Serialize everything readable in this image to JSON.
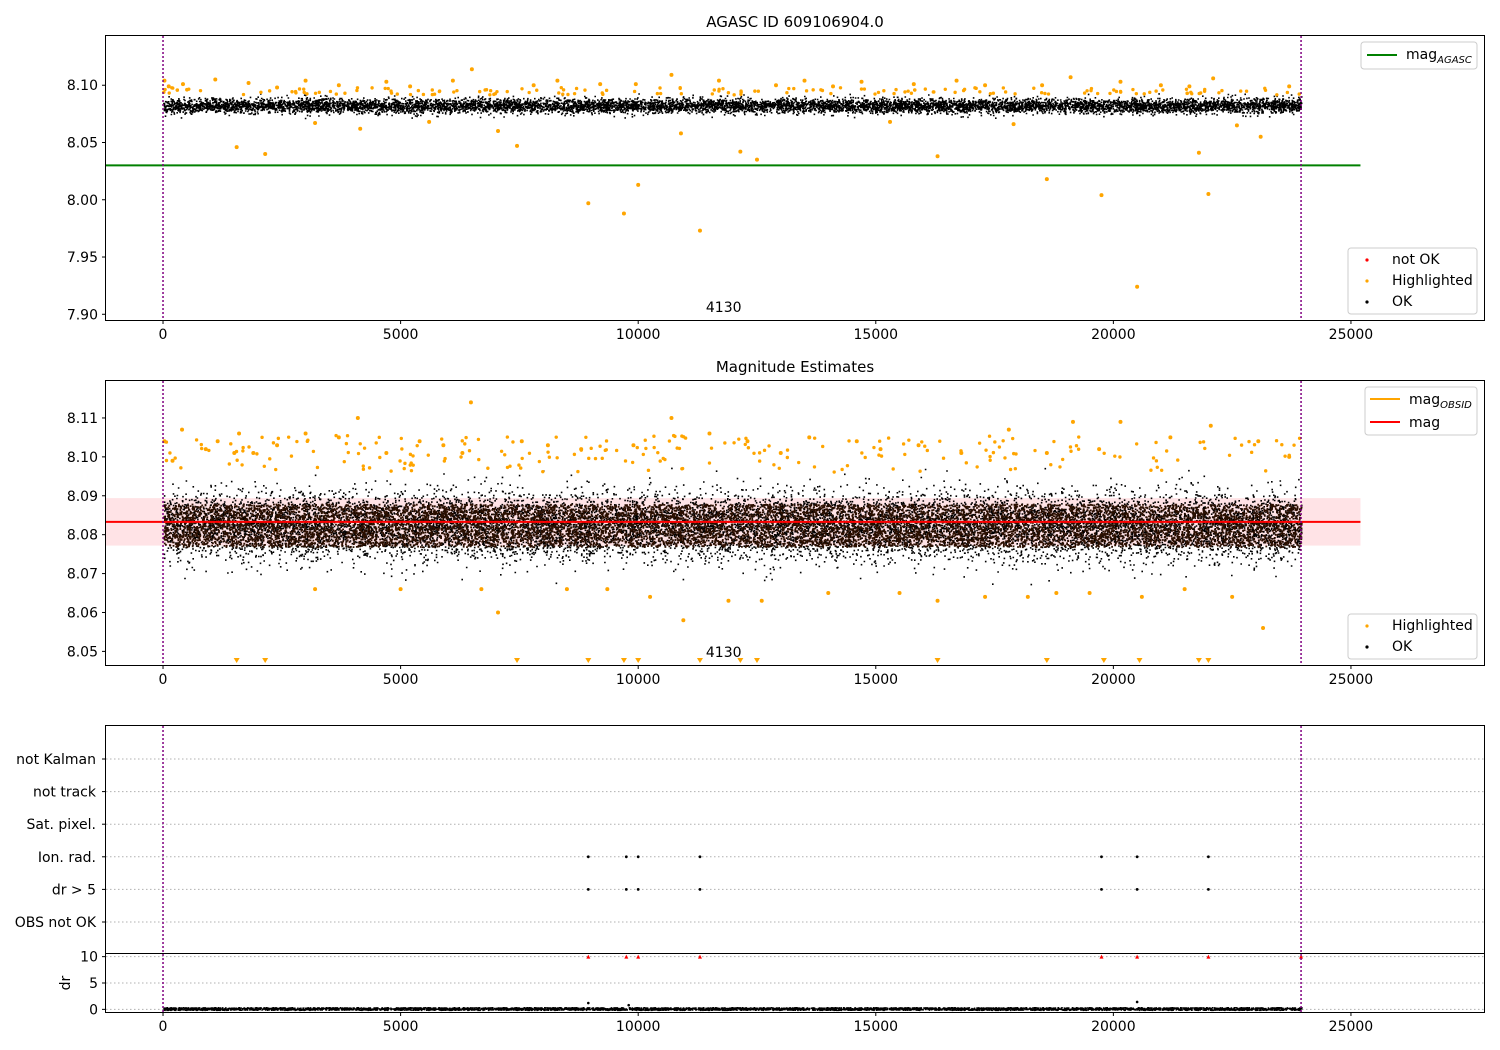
{
  "chart_data": [
    {
      "type": "scatter",
      "title": "AGASC ID 609106904.0",
      "xlim": [
        -1200,
        27800
      ],
      "ylim": [
        7.895,
        8.143
      ],
      "x_ticks": [
        0,
        5000,
        10000,
        15000,
        20000,
        25000
      ],
      "y_ticks": [
        7.9,
        7.95,
        8.0,
        8.05,
        8.1
      ],
      "y_tick_labels": [
        "7.90",
        "7.95",
        "8.00",
        "8.05",
        "8.10"
      ],
      "vlines": [
        0,
        23950
      ],
      "vline_color": "#800080",
      "annotation": "4130",
      "annotation_x": 11800,
      "hlines": [
        {
          "y": 8.03,
          "x": [
            -1200,
            25200
          ],
          "color": "#008000",
          "legend": "mag",
          "legend_sub": "AGASC"
        }
      ],
      "legend_points": [
        {
          "label": "not OK",
          "color": "#ff0000"
        },
        {
          "label": "Highlighted",
          "color": "#ffa500"
        },
        {
          "label": "OK",
          "color": "#000000"
        }
      ],
      "ok_band": {
        "x": [
          0,
          23950
        ],
        "center": 8.0825,
        "spread": 0.007
      },
      "highlighted_points": [
        [
          30,
          8.104
        ],
        [
          120,
          8.099
        ],
        [
          420,
          8.101
        ],
        [
          1100,
          8.105
        ],
        [
          1550,
          8.046
        ],
        [
          1800,
          8.102
        ],
        [
          2150,
          8.04
        ],
        [
          2400,
          8.098
        ],
        [
          3000,
          8.104
        ],
        [
          3200,
          8.067
        ],
        [
          3700,
          8.1
        ],
        [
          4150,
          8.062
        ],
        [
          4700,
          8.103
        ],
        [
          5200,
          8.099
        ],
        [
          5600,
          8.068
        ],
        [
          6100,
          8.104
        ],
        [
          6500,
          8.114
        ],
        [
          7050,
          8.06
        ],
        [
          7450,
          8.047
        ],
        [
          7800,
          8.1
        ],
        [
          8300,
          8.104
        ],
        [
          8950,
          7.997
        ],
        [
          9200,
          8.101
        ],
        [
          9700,
          7.988
        ],
        [
          9950,
          8.101
        ],
        [
          10000,
          8.013
        ],
        [
          10700,
          8.109
        ],
        [
          10900,
          8.058
        ],
        [
          11300,
          7.973
        ],
        [
          11700,
          8.104
        ],
        [
          12150,
          8.042
        ],
        [
          12500,
          8.035
        ],
        [
          12900,
          8.1
        ],
        [
          13500,
          8.104
        ],
        [
          14100,
          8.099
        ],
        [
          14700,
          8.103
        ],
        [
          15300,
          8.068
        ],
        [
          15800,
          8.101
        ],
        [
          16300,
          8.038
        ],
        [
          16700,
          8.104
        ],
        [
          17300,
          8.1
        ],
        [
          17900,
          8.066
        ],
        [
          18500,
          8.1
        ],
        [
          18600,
          8.018
        ],
        [
          19100,
          8.107
        ],
        [
          19750,
          8.004
        ],
        [
          20150,
          8.103
        ],
        [
          20500,
          7.924
        ],
        [
          21000,
          8.1
        ],
        [
          21600,
          8.099
        ],
        [
          21800,
          8.041
        ],
        [
          22000,
          8.005
        ],
        [
          22100,
          8.106
        ],
        [
          22600,
          8.065
        ],
        [
          23100,
          8.055
        ],
        [
          23700,
          8.099
        ]
      ]
    },
    {
      "type": "scatter",
      "title": "Magnitude Estimates",
      "xlim": [
        -1200,
        27800
      ],
      "ylim": [
        8.0465,
        8.1195
      ],
      "x_ticks": [
        0,
        5000,
        10000,
        15000,
        20000,
        25000
      ],
      "y_ticks": [
        8.05,
        8.06,
        8.07,
        8.08,
        8.09,
        8.1,
        8.11
      ],
      "y_tick_labels": [
        "8.05",
        "8.06",
        "8.07",
        "8.08",
        "8.09",
        "8.10",
        "8.11"
      ],
      "vlines": [
        0,
        23950
      ],
      "vline_color": "#800080",
      "annotation": "4130",
      "annotation_x": 11800,
      "hlines": [
        {
          "y": 8.0833,
          "x": [
            -1200,
            25200
          ],
          "color": "#ff0000",
          "legend": "mag",
          "legend_sub": ""
        },
        {
          "y": null,
          "x": [
            0,
            23950
          ],
          "color": "#ffa500",
          "legend": "mag",
          "legend_sub": "OBSID"
        }
      ],
      "band": {
        "y": [
          8.0772,
          8.0894
        ],
        "x": [
          -1200,
          25200
        ],
        "color": "#ffc0c8"
      },
      "legend_points": [
        {
          "label": "Highlighted",
          "color": "#ffa500"
        },
        {
          "label": "OK",
          "color": "#000000"
        }
      ],
      "ok_band": {
        "x": [
          0,
          23950
        ],
        "center": 8.0825,
        "spread": 0.0095
      },
      "out_of_range_markers_x": [
        1550,
        2150,
        7450,
        8950,
        9700,
        10000,
        11300,
        12150,
        12500,
        16300,
        18600,
        19800,
        20550,
        21800,
        22000
      ],
      "highlighted_points": [
        [
          30,
          8.104
        ],
        [
          200,
          8.099
        ],
        [
          400,
          8.107
        ],
        [
          900,
          8.102
        ],
        [
          1150,
          8.104
        ],
        [
          1500,
          8.101
        ],
        [
          1600,
          8.106
        ],
        [
          1900,
          8.101
        ],
        [
          2400,
          8.103
        ],
        [
          3000,
          8.106
        ],
        [
          3200,
          8.066
        ],
        [
          3700,
          8.105
        ],
        [
          4100,
          8.11
        ],
        [
          4700,
          8.101
        ],
        [
          5000,
          8.066
        ],
        [
          5400,
          8.104
        ],
        [
          5900,
          8.103
        ],
        [
          6300,
          8.101
        ],
        [
          6480,
          8.114
        ],
        [
          6700,
          8.066
        ],
        [
          7050,
          8.06
        ],
        [
          7550,
          8.104
        ],
        [
          8100,
          8.103
        ],
        [
          8500,
          8.066
        ],
        [
          8800,
          8.102
        ],
        [
          9350,
          8.066
        ],
        [
          9900,
          8.103
        ],
        [
          10250,
          8.064
        ],
        [
          10700,
          8.11
        ],
        [
          10950,
          8.058
        ],
        [
          11500,
          8.106
        ],
        [
          11900,
          8.063
        ],
        [
          12300,
          8.104
        ],
        [
          12600,
          8.063
        ],
        [
          13000,
          8.101
        ],
        [
          13600,
          8.105
        ],
        [
          14000,
          8.065
        ],
        [
          14600,
          8.104
        ],
        [
          15100,
          8.102
        ],
        [
          15500,
          8.065
        ],
        [
          15900,
          8.103
        ],
        [
          16300,
          8.063
        ],
        [
          16800,
          8.101
        ],
        [
          17300,
          8.064
        ],
        [
          17800,
          8.107
        ],
        [
          18200,
          8.064
        ],
        [
          18600,
          8.101
        ],
        [
          18800,
          8.065
        ],
        [
          19150,
          8.109
        ],
        [
          19500,
          8.065
        ],
        [
          19700,
          8.102
        ],
        [
          20150,
          8.109
        ],
        [
          20600,
          8.064
        ],
        [
          21200,
          8.105
        ],
        [
          21500,
          8.066
        ],
        [
          22050,
          8.108
        ],
        [
          22500,
          8.064
        ],
        [
          23050,
          8.104
        ],
        [
          23150,
          8.056
        ],
        [
          23700,
          8.1
        ]
      ]
    },
    {
      "type": "scatter",
      "title": "",
      "xlim": [
        -1200,
        27800
      ],
      "x_ticks": [
        0,
        5000,
        10000,
        15000,
        20000,
        25000
      ],
      "categories": [
        "not Kalman",
        "not track",
        "Sat. pixel.",
        "Ion. rad.",
        "dr > 5",
        "OBS not OK"
      ],
      "flag_points": {
        "Ion. rad.": [
          8950,
          9750,
          10000,
          11300,
          19750,
          20500,
          22000
        ],
        "dr > 5": [
          8950,
          9750,
          10000,
          11300,
          19750,
          20500,
          22000
        ]
      },
      "vlines": [
        0,
        23950
      ],
      "vline_color": "#800080",
      "dr": {
        "ylabel": "dr",
        "ylim": [
          -0.5,
          10.5
        ],
        "y_ticks": [
          0,
          5,
          10
        ],
        "y_tick_labels": [
          "0",
          "5",
          "10"
        ],
        "baseline": 0.2,
        "clipped_markers_x": [
          8950,
          9750,
          10000,
          11300,
          19750,
          20500,
          22000,
          23950
        ],
        "clipped_color": "#ff0000",
        "small_spikes": [
          [
            8950,
            1.2
          ],
          [
            9800,
            0.8
          ],
          [
            20500,
            1.4
          ]
        ]
      }
    }
  ],
  "ui": {
    "title_top": "AGASC ID 609106904.0",
    "title_mid": "Magnitude Estimates",
    "annotation": "4130",
    "ticks": {
      "x": [
        "0",
        "5000",
        "10000",
        "15000",
        "20000",
        "25000"
      ],
      "top_y": [
        "7.90",
        "7.95",
        "8.00",
        "8.05",
        "8.10"
      ],
      "mid_y": [
        "8.05",
        "8.06",
        "8.07",
        "8.08",
        "8.09",
        "8.10",
        "8.11"
      ],
      "dr_y": [
        "0",
        "5",
        "10"
      ]
    },
    "legend_top_line": "mag",
    "legend_top_line_sub": "AGASC",
    "legend_top_pts": [
      "not OK",
      "Highlighted",
      "OK"
    ],
    "legend_mid_line1": "mag",
    "legend_mid_line1_sub": "OBSID",
    "legend_mid_line2": "mag",
    "legend_mid_pts": [
      "Highlighted",
      "OK"
    ],
    "flag_labels": [
      "not Kalman",
      "not track",
      "Sat. pixel.",
      "Ion. rad.",
      "dr > 5",
      "OBS not OK"
    ],
    "dr_label": "dr",
    "colors": {
      "ok": "#000000",
      "highlighted": "#ffa500",
      "not_ok": "#ff0000",
      "agasc": "#008000",
      "mag": "#ff0000",
      "obsid": "#ffa500",
      "band": "#ffc0c8",
      "vline": "#800080",
      "dense": "#2b0f00"
    }
  }
}
